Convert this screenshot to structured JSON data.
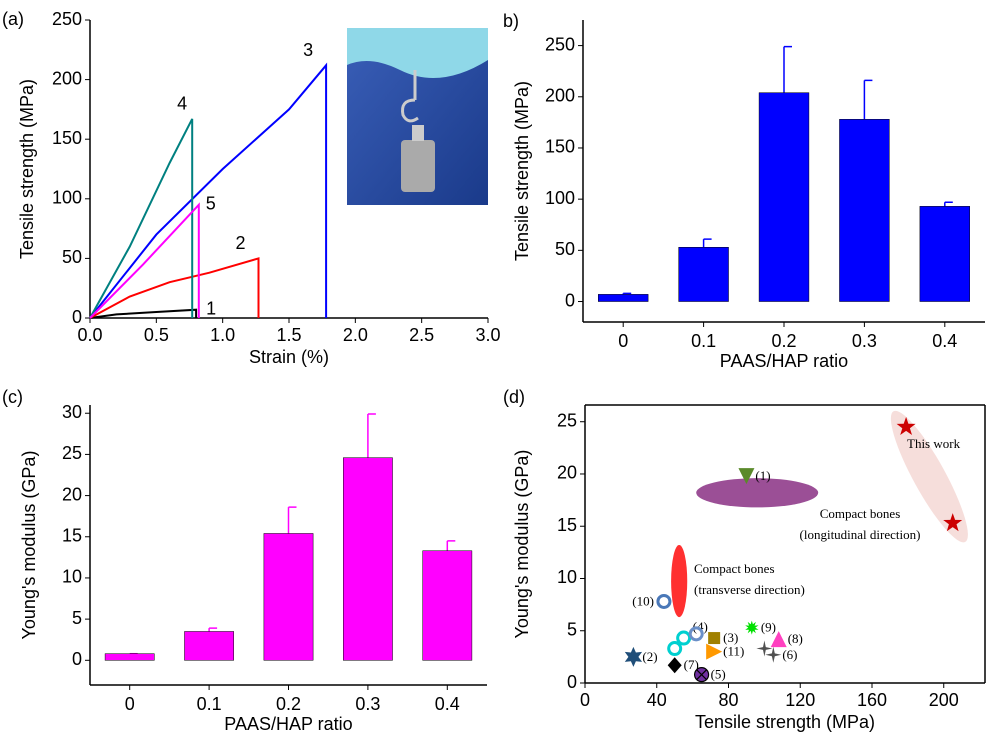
{
  "chart_data": [
    {
      "type": "line",
      "panel": "(a)",
      "x_label": "Strain (%)",
      "y_label": "Tensile strength (MPa)",
      "xlim": [
        0,
        3
      ],
      "xticks": [
        {
          "value": 0,
          "label": "0.0"
        },
        {
          "value": 0.5,
          "label": "0.5"
        },
        {
          "value": 1,
          "label": "1.0"
        },
        {
          "value": 1.5,
          "label": "1.5"
        },
        {
          "value": 2,
          "label": "2.0"
        },
        {
          "value": 2.5,
          "label": "2.5"
        },
        {
          "value": 3,
          "label": "3.0"
        }
      ],
      "ylim": [
        0,
        250
      ],
      "yticks": [
        0,
        50,
        100,
        150,
        200,
        250
      ],
      "series": [
        {
          "name": "1",
          "color": "#000000",
          "x": [
            0,
            0.2,
            0.5,
            0.8,
            0.8
          ],
          "values": [
            0,
            3,
            5,
            7,
            0
          ]
        },
        {
          "name": "2",
          "color": "#ff0000",
          "x": [
            0,
            0.3,
            0.6,
            0.9,
            1.27,
            1.27
          ],
          "values": [
            0,
            18,
            30,
            38,
            50,
            0
          ]
        },
        {
          "name": "3",
          "color": "#0000ff",
          "x": [
            0,
            0.5,
            1.0,
            1.5,
            1.78,
            1.78
          ],
          "values": [
            0,
            70,
            125,
            175,
            212,
            0
          ]
        },
        {
          "name": "4",
          "color": "#008080",
          "x": [
            0,
            0.3,
            0.6,
            0.77,
            0.77
          ],
          "values": [
            0,
            60,
            130,
            167,
            0
          ]
        },
        {
          "name": "5",
          "color": "#ff00ff",
          "x": [
            0,
            0.4,
            0.82,
            0.82
          ],
          "values": [
            0,
            45,
            95,
            0
          ]
        }
      ]
    },
    {
      "type": "bar",
      "panel": "b)",
      "x_label": "PAAS/HAP ratio",
      "y_label": "Tensile strength (MPa)",
      "categories": [
        "0",
        "0.1",
        "0.2",
        "0.3",
        "0.4"
      ],
      "values": [
        7,
        53,
        204,
        178,
        93
      ],
      "errors": [
        1,
        8,
        45,
        38,
        4
      ],
      "color": "#0000ff",
      "ylim": [
        -20,
        275
      ],
      "yticks": [
        0,
        50,
        100,
        150,
        200,
        250
      ]
    },
    {
      "type": "bar",
      "panel": "(c)",
      "x_label": "PAAS/HAP ratio",
      "y_label": "Young's modulus (GPa)",
      "categories": [
        "0",
        "0.1",
        "0.2",
        "0.3",
        "0.4"
      ],
      "values": [
        0.8,
        3.5,
        15.4,
        24.6,
        13.3
      ],
      "errors": [
        0,
        0.4,
        3.2,
        5.3,
        1.2
      ],
      "color": "#ff00ff",
      "ylim": [
        -3,
        31
      ],
      "yticks": [
        0,
        5,
        10,
        15,
        20,
        25,
        30
      ]
    },
    {
      "type": "scatter",
      "panel": "(d)",
      "x_label": "Tensile strength (MPa)",
      "y_label": "Young's modulus (GPa)",
      "xlim": [
        0,
        223
      ],
      "xticks": [
        0,
        40,
        80,
        120,
        160,
        200
      ],
      "ylim": [
        0,
        26.6
      ],
      "yticks": [
        0,
        5,
        10,
        15,
        20,
        25
      ],
      "regions": [
        {
          "label": [
            "This work"
          ],
          "color": "#f2d0cc",
          "label_color": "#cc0000",
          "xlim": [
            172,
            212
          ],
          "ylim": [
            13.5,
            26
          ]
        },
        {
          "label": [
            "Compact bones",
            "(longitudinal direction)"
          ],
          "color": "#9b4f96",
          "label_color": "#6a1a75",
          "xlim": [
            62,
            130
          ],
          "ylim": [
            16.8,
            19.6
          ]
        },
        {
          "label": [
            "Compact bones",
            "(transverse direction)"
          ],
          "color": "#ff3030",
          "label_color": "#ff0000",
          "xlim": [
            48,
            57
          ],
          "ylim": [
            6.3,
            13.2
          ]
        }
      ],
      "points": [
        {
          "x": 179,
          "y": 24.5,
          "label": null,
          "color": "#cc0000",
          "marker": "star"
        },
        {
          "x": 205,
          "y": 15.3,
          "label": null,
          "color": "#cc0000",
          "marker": "star"
        },
        {
          "x": 90,
          "y": 19.8,
          "label": "(1)",
          "color": "#5a8a2a",
          "marker": "tri-down"
        },
        {
          "x": 27,
          "y": 2.5,
          "label": "(2)",
          "color": "#1f4e79",
          "marker": "star6"
        },
        {
          "x": 72,
          "y": 4.3,
          "label": "(3)",
          "color": "#a08000",
          "marker": "square"
        },
        {
          "x": 55,
          "y": 4.3,
          "label": "(4)",
          "color": "#00d0d0",
          "marker": "ring"
        },
        {
          "x": 50,
          "y": 3.3,
          "label": null,
          "color": "#00d0d0",
          "marker": "ring"
        },
        {
          "x": 62,
          "y": 4.7,
          "label": null,
          "color": "#6a8fc8",
          "marker": "ring"
        },
        {
          "x": 65,
          "y": 0.8,
          "label": "(5)",
          "color": "#7030a0",
          "marker": "circlex"
        },
        {
          "x": 105,
          "y": 2.7,
          "label": "(6)",
          "color": "#505050",
          "marker": "star4"
        },
        {
          "x": 100,
          "y": 3.3,
          "label": null,
          "color": "#505050",
          "marker": "star4"
        },
        {
          "x": 50,
          "y": 1.7,
          "label": "(7)",
          "color": "#000000",
          "marker": "diamond"
        },
        {
          "x": 108,
          "y": 4.2,
          "label": "(8)",
          "color": "#ff40c0",
          "marker": "tri-up"
        },
        {
          "x": 93,
          "y": 5.3,
          "label": "(9)",
          "color": "#00e000",
          "marker": "burst"
        },
        {
          "x": 44,
          "y": 7.8,
          "label": "(10)",
          "color": "#4a78b8",
          "marker": "ring"
        },
        {
          "x": 72,
          "y": 3.0,
          "label": "(11)",
          "color": "#ff9900",
          "marker": "tri-right"
        }
      ]
    }
  ]
}
